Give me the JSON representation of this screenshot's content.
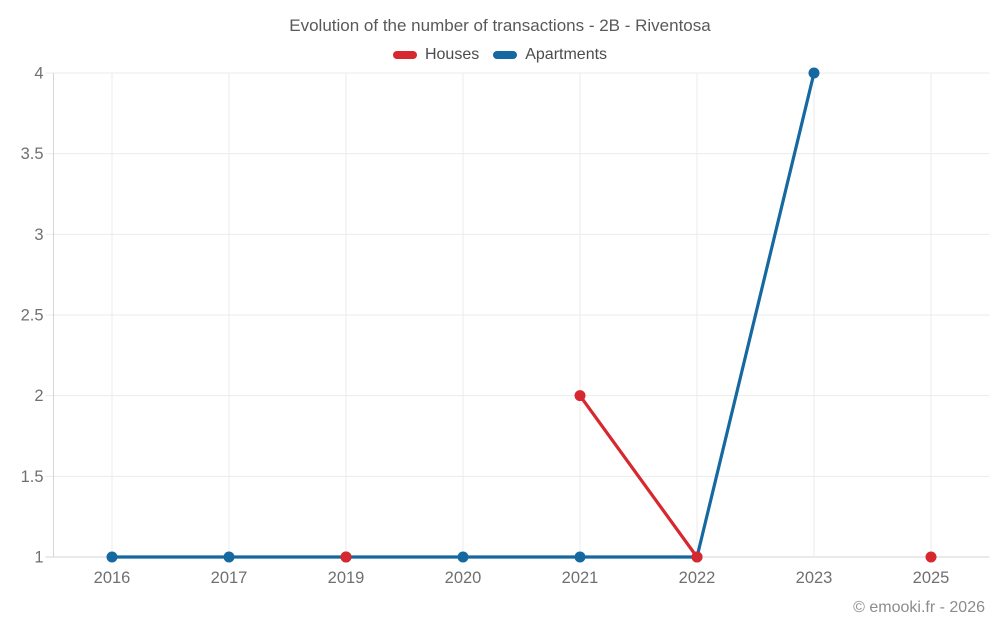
{
  "title": "Evolution of the number of transactions - 2B - Riventosa",
  "footer": "© emooki.fr - 2026",
  "colors": {
    "houses": "#d7282f",
    "apartments": "#1668a0",
    "grid": "#ebebeb",
    "axis": "#d6d6d6",
    "title_text": "#58595b",
    "axis_text": "#6f7072",
    "legend_text": "#4b4c4e",
    "footer_text": "#8c8c8c"
  },
  "chart_data": {
    "type": "line",
    "title": "Evolution of the number of transactions - 2B - Riventosa",
    "categories": [
      "2016",
      "2017",
      "2019",
      "2020",
      "2021",
      "2022",
      "2023",
      "2025"
    ],
    "series": [
      {
        "name": "Houses",
        "color": "#d7282f",
        "values": [
          null,
          null,
          1,
          null,
          2,
          1,
          null,
          1
        ]
      },
      {
        "name": "Apartments",
        "color": "#1668a0",
        "values": [
          1,
          1,
          1,
          1,
          1,
          1,
          4,
          null
        ]
      }
    ],
    "xlabel": "",
    "ylabel": "",
    "ylim": [
      1,
      4
    ],
    "yticks": [
      1,
      1.5,
      2,
      2.5,
      3,
      3.5,
      4
    ],
    "grid": true,
    "legend_position": "top"
  }
}
